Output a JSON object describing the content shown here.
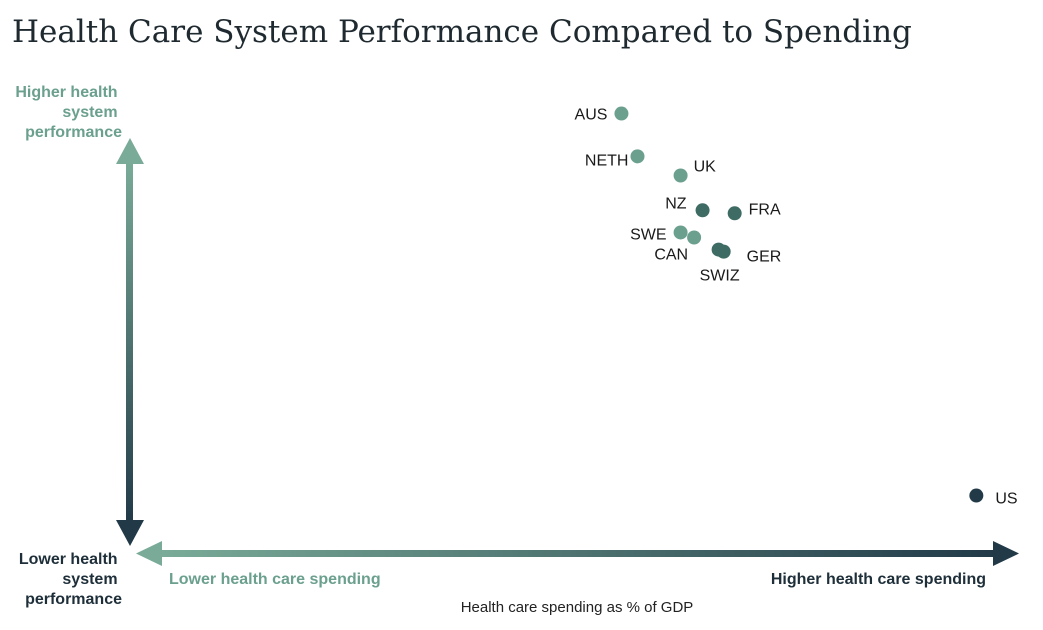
{
  "title": "Health Care System Performance Compared to Spending",
  "y_axis": {
    "top_label": [
      "Higher health",
      "system",
      "performance"
    ],
    "bottom_label": [
      "Lower health",
      "system",
      "performance"
    ]
  },
  "x_axis": {
    "left_label": "Lower health care spending",
    "right_label": "Higher health care spending",
    "caption": "Health care spending as % of GDP"
  },
  "colors": {
    "light": "#6ba08e",
    "dark": "#223a48",
    "title": "#1f2a30"
  },
  "chart_data": {
    "type": "scatter",
    "title": "Health Care System Performance Compared to Spending",
    "xlabel": "Health care spending as % of GDP",
    "ylabel": "",
    "x_axis_scale": "relative (no numeric ticks)",
    "y_axis_scale": "relative (no numeric ticks)",
    "xlim": [
      0,
      100
    ],
    "ylim": [
      0,
      100
    ],
    "grid": false,
    "points": [
      {
        "label": "AUS",
        "x": 55.2,
        "y": 87.0
      },
      {
        "label": "NETH",
        "x": 57.1,
        "y": 78.5
      },
      {
        "label": "UK",
        "x": 62.2,
        "y": 74.7
      },
      {
        "label": "NZ",
        "x": 64.8,
        "y": 67.8
      },
      {
        "label": "FRA",
        "x": 68.6,
        "y": 67.2
      },
      {
        "label": "SWE",
        "x": 62.2,
        "y": 63.4
      },
      {
        "label": "CAN",
        "x": 63.8,
        "y": 62.4
      },
      {
        "label": "GER",
        "x": 67.3,
        "y": 59.6
      },
      {
        "label": "SWIZ",
        "x": 66.7,
        "y": 60.0
      },
      {
        "label": "US",
        "x": 97.2,
        "y": 11.2
      }
    ]
  }
}
